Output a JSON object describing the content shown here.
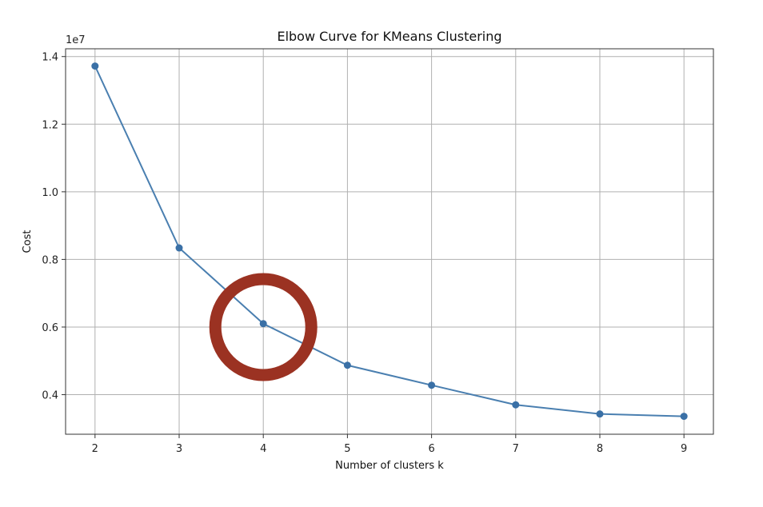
{
  "chart_data": {
    "type": "line",
    "title": "Elbow Curve for KMeans Clustering",
    "xlabel": "Number of clusters k",
    "ylabel": "Cost",
    "y_offset_label": "1e7",
    "x": [
      2,
      3,
      4,
      5,
      6,
      7,
      8,
      9
    ],
    "series": [
      {
        "values": [
          13720000,
          8340000,
          6100000,
          4870000,
          4280000,
          3700000,
          3430000,
          3360000
        ]
      }
    ],
    "xlim": [
      1.65,
      9.35
    ],
    "ylim": [
      2830000,
      14230000
    ],
    "x_ticks": [
      2,
      3,
      4,
      5,
      6,
      7,
      8,
      9
    ],
    "x_tick_labels": [
      "2",
      "3",
      "4",
      "5",
      "6",
      "7",
      "8",
      "9"
    ],
    "y_ticks": [
      4000000,
      6000000,
      8000000,
      10000000,
      12000000,
      14000000
    ],
    "y_tick_labels": [
      "0.4",
      "0.6",
      "0.8",
      "1.0",
      "1.2",
      "1.4"
    ],
    "grid": true,
    "line_color": "#4a7fb0",
    "marker_color": "#3a70a6",
    "annotation": {
      "type": "circle",
      "x": 4,
      "y": 6000000,
      "color": "#9b3222"
    }
  }
}
